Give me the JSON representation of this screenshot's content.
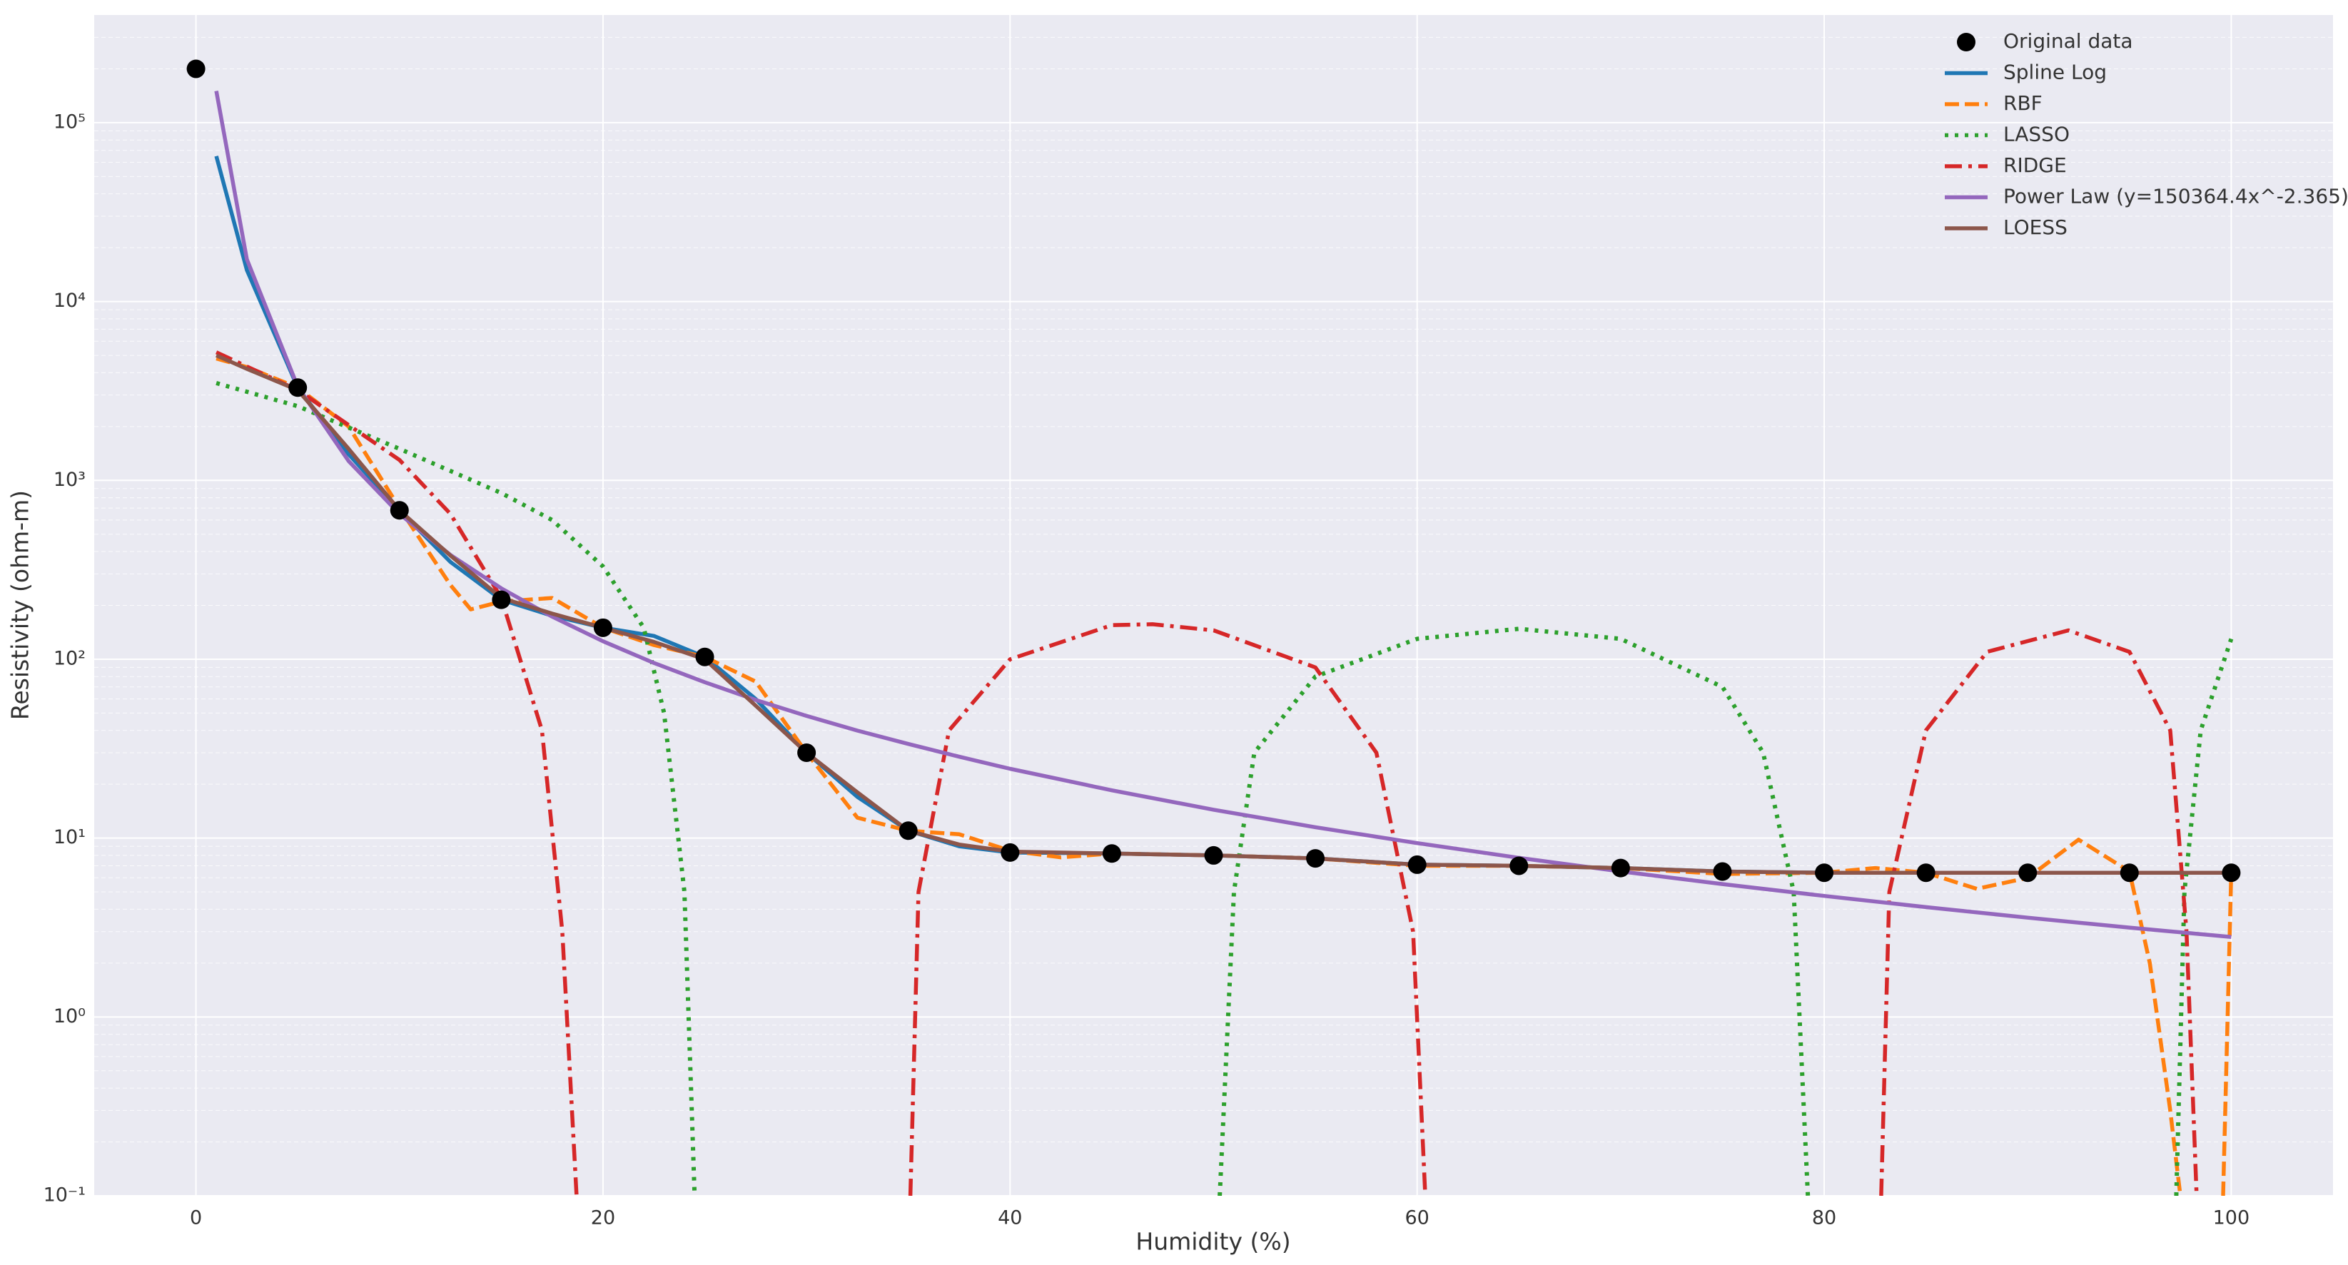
{
  "chart_data": {
    "type": "line",
    "x_label": "Humidity (%)",
    "y_label": "Resistivity (ohm-m)",
    "xlim": [
      -5,
      105
    ],
    "xticks": [
      0,
      20,
      40,
      60,
      80,
      100
    ],
    "ylim": [
      0.1,
      400000
    ],
    "log_y": true,
    "grid": true,
    "legend": "upper right",
    "yticks": [
      {
        "value": 0.1,
        "label": "10⁻¹"
      },
      {
        "value": 1,
        "label": "10⁰"
      },
      {
        "value": 10,
        "label": "10¹"
      },
      {
        "value": 100,
        "label": "10²"
      },
      {
        "value": 1000,
        "label": "10³"
      },
      {
        "value": 10000,
        "label": "10⁴"
      },
      {
        "value": 100000,
        "label": "10⁵"
      }
    ],
    "series": [
      {
        "name": "Original data",
        "type": "scatter",
        "color": "#000000",
        "x": [
          0,
          5,
          10,
          15,
          20,
          25,
          30,
          35,
          40,
          45,
          50,
          55,
          60,
          65,
          70,
          75,
          80,
          85,
          90,
          95,
          100
        ],
        "values": [
          200000,
          3300,
          680,
          215,
          150,
          103,
          30,
          11,
          8.3,
          8.2,
          8.0,
          7.7,
          7.1,
          7.0,
          6.8,
          6.5,
          6.4,
          6.4,
          6.4,
          6.4,
          6.4
        ]
      },
      {
        "name": "Spline Log",
        "type": "line",
        "color": "#1f77b4",
        "linestyle": "solid",
        "x": [
          1,
          2.5,
          5,
          7.5,
          10,
          12.5,
          15,
          17.5,
          20,
          22.5,
          25,
          27.5,
          30,
          32.5,
          35,
          37.5,
          40,
          45,
          50,
          55,
          60,
          65,
          70,
          75,
          80,
          85,
          90,
          95,
          100
        ],
        "values": [
          65000,
          15000,
          3300,
          1400,
          680,
          350,
          215,
          175,
          150,
          135,
          103,
          60,
          30,
          17,
          11,
          9,
          8.3,
          8.2,
          8.0,
          7.7,
          7.1,
          7.0,
          6.8,
          6.5,
          6.4,
          6.4,
          6.4,
          6.4,
          6.4
        ]
      },
      {
        "name": "RBF",
        "type": "line",
        "color": "#ff7f0e",
        "linestyle": "dashed",
        "x": [
          1,
          2.5,
          5,
          7.5,
          10,
          12.5,
          13.5,
          15,
          17.5,
          20,
          22.5,
          25,
          27.5,
          30,
          32.5,
          35,
          37.5,
          40,
          42.5,
          45,
          50,
          55,
          60,
          65,
          70,
          75,
          80,
          82.5,
          85,
          87.5,
          90,
          92.5,
          95,
          96,
          97,
          97.5,
          98,
          99,
          99.6,
          100
        ],
        "values": [
          4800,
          4300,
          3300,
          2000,
          700,
          260,
          190,
          210,
          220,
          150,
          120,
          103,
          75,
          30,
          13,
          11,
          10.5,
          8.5,
          7.8,
          8.2,
          8.0,
          7.7,
          7.0,
          7.0,
          6.8,
          6.3,
          6.4,
          6.8,
          6.4,
          5.2,
          6.0,
          9.8,
          6.5,
          2.0,
          0.3,
          0.1,
          null,
          null,
          0.1,
          6.4
        ]
      },
      {
        "name": "LASSO",
        "type": "line",
        "color": "#2ca02c",
        "linestyle": "dotted",
        "x": [
          1,
          5,
          10,
          15,
          17.5,
          20,
          22,
          23,
          24,
          24.5,
          25,
          50,
          50.3,
          51,
          52,
          55,
          60,
          65,
          70,
          75,
          77,
          78.5,
          79.2,
          80,
          97,
          97.3,
          97.7,
          98.5,
          100
        ],
        "values": [
          3500,
          2600,
          1500,
          850,
          600,
          330,
          150,
          50,
          5,
          0.1,
          null,
          null,
          0.1,
          5,
          30,
          80,
          130,
          148,
          130,
          70,
          30,
          5,
          0.1,
          null,
          null,
          0.1,
          5,
          40,
          130
        ]
      },
      {
        "name": "RIDGE",
        "type": "line",
        "color": "#d62728",
        "linestyle": "dashdot",
        "x": [
          1,
          5,
          10,
          12.5,
          15,
          17,
          18,
          18.7,
          19,
          35,
          35.1,
          35.5,
          37,
          40,
          45,
          47,
          50,
          55,
          58,
          59.8,
          60.4,
          61,
          82,
          82.8,
          83.2,
          85,
          88,
          92,
          95,
          97,
          97.8,
          98.3
        ],
        "values": [
          5200,
          3200,
          1300,
          650,
          220,
          40,
          3,
          0.1,
          null,
          null,
          0.1,
          5,
          40,
          100,
          155,
          157,
          145,
          90,
          30,
          3,
          0.1,
          null,
          null,
          0.1,
          5,
          40,
          110,
          145,
          110,
          40,
          3,
          0.1
        ]
      },
      {
        "name": "Power Law (y=150364.4x^-2.365)",
        "type": "line",
        "color": "#9467bd",
        "linestyle": "solid",
        "x": [
          1,
          2.5,
          5,
          7.5,
          10,
          12.5,
          15,
          17.5,
          20,
          22.5,
          25,
          27.5,
          30,
          32.5,
          35,
          37.5,
          40,
          45,
          50,
          55,
          60,
          65,
          70,
          75,
          80,
          85,
          90,
          95,
          100
        ],
        "values": [
          150364,
          17220,
          3340,
          1282,
          649,
          383,
          249,
          173,
          126,
          95.3,
          74.4,
          59.2,
          48.2,
          39.9,
          33.6,
          28.5,
          24.4,
          18.5,
          14.4,
          11.5,
          9.37,
          7.76,
          6.51,
          5.53,
          4.75,
          4.11,
          3.59,
          3.16,
          2.8
        ]
      },
      {
        "name": "LOESS",
        "type": "line",
        "color": "#8c564b",
        "linestyle": "solid",
        "x": [
          1,
          2.5,
          5,
          7.5,
          10,
          12.5,
          15,
          17.5,
          20,
          22.5,
          25,
          27.5,
          30,
          32.5,
          35,
          37.5,
          40,
          45,
          50,
          55,
          60,
          65,
          70,
          75,
          80,
          85,
          90,
          95,
          100
        ],
        "values": [
          5000,
          4200,
          3200,
          1500,
          680,
          380,
          220,
          180,
          150,
          125,
          100,
          55,
          30,
          18,
          11,
          9.2,
          8.4,
          8.2,
          8.0,
          7.7,
          7.1,
          7.0,
          6.8,
          6.5,
          6.4,
          6.4,
          6.4,
          6.4,
          6.4
        ]
      }
    ]
  }
}
